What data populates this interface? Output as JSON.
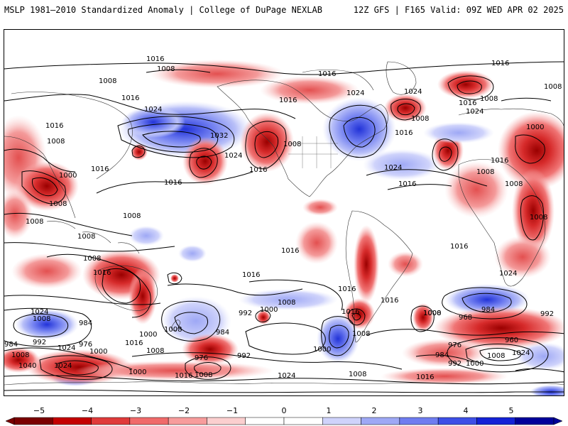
{
  "header": {
    "title": "MSLP 1981–2010 Standardized Anomaly | College of DuPage NEXLAB",
    "run_info": "12Z GFS | F165 Valid: 09Z WED APR 02 2025"
  },
  "colorbar": {
    "ticks": [
      "−5",
      "−4",
      "−3",
      "−2",
      "−1",
      "0",
      "1",
      "2",
      "3",
      "4",
      "5"
    ],
    "colors": [
      "#7a0000",
      "#c40000",
      "#e03a3a",
      "#f06a6a",
      "#f79c9c",
      "#fbcfcf",
      "#ffffff",
      "#ffffff",
      "#cfd3fb",
      "#9ea8f5",
      "#6f7df0",
      "#3d4fe6",
      "#1422d6",
      "#00009a"
    ]
  },
  "map": {
    "contour_labels": [
      "1016",
      "1008",
      "1016",
      "1024",
      "1024",
      "1008",
      "1016",
      "1016",
      "1016",
      "1024",
      "1008",
      "1000",
      "1008",
      "1016",
      "1016",
      "1032",
      "1024",
      "1008",
      "1016",
      "1024",
      "1016",
      "1008",
      "1016",
      "1000",
      "1016",
      "1008",
      "1008",
      "1008",
      "1008",
      "1016",
      "1024",
      "1016",
      "1008",
      "1008",
      "1008",
      "1016",
      "1016",
      "1016",
      "1016",
      "1024",
      "1008",
      "1008",
      "1024",
      "1016",
      "992",
      "1000",
      "1016",
      "1008",
      "1000",
      "1008",
      "968",
      "984",
      "992",
      "984",
      "1000",
      "984",
      "992",
      "976",
      "1008",
      "1024",
      "1000",
      "1008",
      "976",
      "992",
      "1016",
      "1008",
      "1040",
      "1024",
      "1000",
      "1016",
      "1008",
      "1024",
      "1008",
      "1016",
      "1008",
      "960",
      "976",
      "984",
      "1024",
      "1008",
      "992",
      "1000",
      "1016",
      "1000",
      "1008",
      "984"
    ]
  }
}
